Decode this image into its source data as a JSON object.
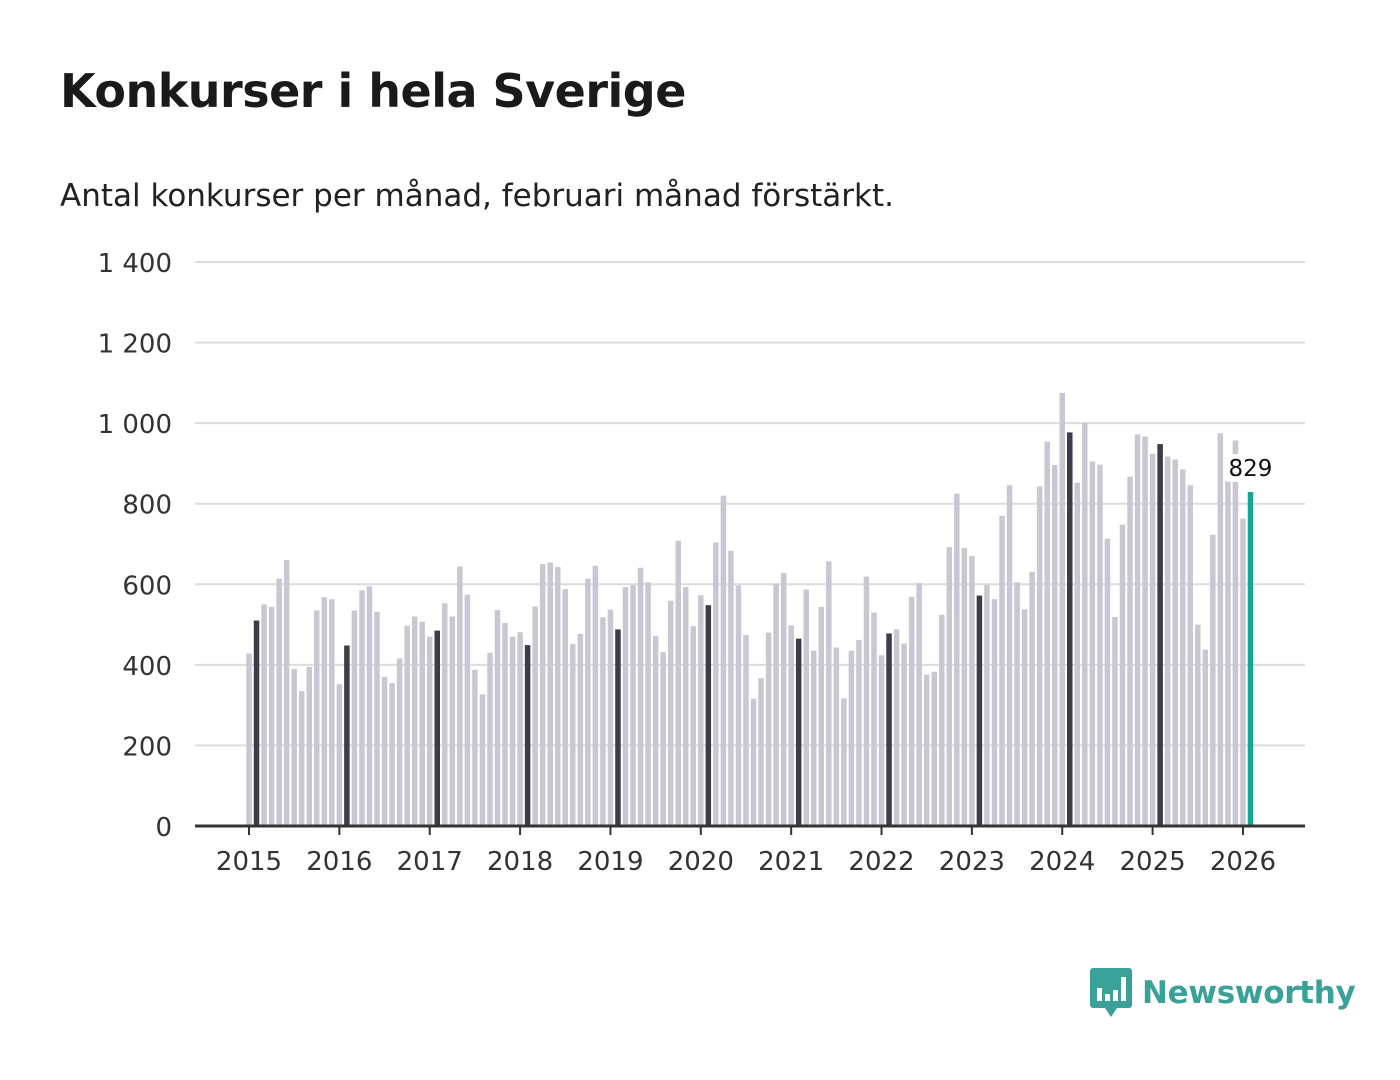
{
  "title": "Konkurser i hela Sverige",
  "subtitle": "Antal konkurser per månad, februari månad förstärkt.",
  "brand": {
    "name": "Newsworthy",
    "icon": "newsworthy-logo-icon"
  },
  "colors": {
    "bar": "#c8c8d3",
    "highlight": "#3c3c4b",
    "latest": "#1aa394",
    "grid": "#dcdcdc",
    "axis": "#333333",
    "brand": "#3aa198"
  },
  "chart_data": {
    "type": "bar",
    "title": "Konkurser i hela Sverige",
    "subtitle": "Antal konkurser per månad, februari månad förstärkt.",
    "xlabel": "",
    "ylabel": "",
    "ylim": [
      0,
      1400
    ],
    "yticks": [
      0,
      200,
      400,
      600,
      800,
      1000,
      1200,
      1400
    ],
    "ytick_labels": [
      "0",
      "200",
      "400",
      "600",
      "800",
      "1 000",
      "1 200",
      "1 400"
    ],
    "xtick_labels": [
      "2015",
      "2016",
      "2017",
      "2018",
      "2019",
      "2020",
      "2021",
      "2022",
      "2023",
      "2024",
      "2025",
      "2026"
    ],
    "start": "2015-01",
    "highlight_month": "februari",
    "values": [
      428,
      510,
      550,
      544,
      614,
      660,
      390,
      335,
      395,
      535,
      568,
      563,
      352,
      448,
      535,
      585,
      595,
      532,
      370,
      355,
      416,
      497,
      520,
      507,
      470,
      485,
      553,
      520,
      644,
      574,
      388,
      327,
      430,
      536,
      504,
      470,
      481,
      449,
      545,
      650,
      654,
      643,
      588,
      452,
      477,
      614,
      646,
      518,
      537,
      488,
      593,
      598,
      641,
      605,
      472,
      432,
      559,
      708,
      593,
      496,
      573,
      548,
      704,
      820,
      683,
      597,
      474,
      316,
      367,
      480,
      602,
      628,
      498,
      465,
      587,
      435,
      544,
      657,
      443,
      317,
      435,
      462,
      619,
      530,
      424,
      478,
      488,
      453,
      569,
      603,
      376,
      383,
      524,
      692,
      825,
      690,
      670,
      572,
      598,
      563,
      770,
      846,
      605,
      538,
      631,
      843,
      954,
      896,
      1075,
      977,
      852,
      1001,
      905,
      897,
      713,
      519,
      748,
      867,
      972,
      967,
      924,
      948,
      917,
      910,
      885,
      846,
      500,
      438,
      723,
      975,
      870,
      957,
      763,
      829
    ],
    "annotation": {
      "label": "829",
      "value": 829,
      "month": "2026-02"
    }
  }
}
